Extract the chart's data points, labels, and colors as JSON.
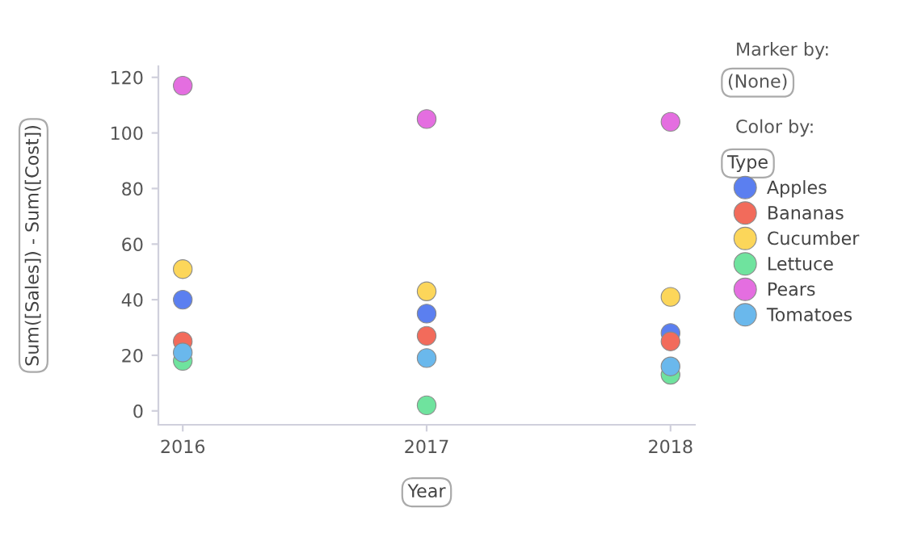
{
  "chart_data": {
    "type": "scatter",
    "xlabel": "Year",
    "ylabel": "Sum([Sales]) - Sum([Cost])",
    "legend_title": "Type",
    "annotations": [
      "Marker by:",
      "(None)",
      "Color by:"
    ],
    "categories": [
      "2016",
      "2017",
      "2018"
    ],
    "ylim": [
      -5,
      124
    ],
    "yticks": [
      0,
      20,
      40,
      60,
      80,
      100,
      120
    ],
    "grid": false,
    "legend": "right",
    "marker": "circle",
    "series": [
      {
        "name": "Apples",
        "color": "#5b7ff0",
        "values": [
          40,
          35,
          28
        ]
      },
      {
        "name": "Bananas",
        "color": "#f26b5b",
        "values": [
          25,
          27,
          25
        ]
      },
      {
        "name": "Cucumber",
        "color": "#fcd65a",
        "values": [
          51,
          43,
          41
        ]
      },
      {
        "name": "Lettuce",
        "color": "#6fe39e",
        "values": [
          18,
          2,
          13
        ]
      },
      {
        "name": "Pears",
        "color": "#e46ee0",
        "values": [
          117,
          105,
          104
        ]
      },
      {
        "name": "Tomatoes",
        "color": "#6ab8ec",
        "values": [
          21,
          19,
          16
        ]
      }
    ]
  }
}
